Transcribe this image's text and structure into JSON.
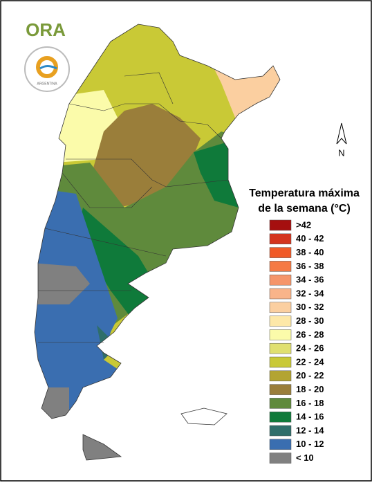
{
  "logo": {
    "text": "ORA",
    "seal_text": "ARGENTINA"
  },
  "title": [
    "Temperatura máxima",
    "de la semana (°C)"
  ],
  "north_label": "N",
  "legend": [
    {
      "label": ">42",
      "color": "#a50f0f"
    },
    {
      "label": "40 - 42",
      "color": "#d4341e"
    },
    {
      "label": "38 - 40",
      "color": "#f05a28"
    },
    {
      "label": "36 - 38",
      "color": "#f57a44"
    },
    {
      "label": "34 - 36",
      "color": "#f5956a"
    },
    {
      "label": "32 - 34",
      "color": "#f9b48a"
    },
    {
      "label": "30 - 32",
      "color": "#fbcfa0"
    },
    {
      "label": "28 - 30",
      "color": "#fde8a8"
    },
    {
      "label": "26 - 28",
      "color": "#fbfbaa"
    },
    {
      "label": "24 - 26",
      "color": "#e0e070"
    },
    {
      "label": "22 - 24",
      "color": "#c9c936"
    },
    {
      "label": "20 - 22",
      "color": "#b3a432"
    },
    {
      "label": "18 - 20",
      "color": "#9a7e3a"
    },
    {
      "label": "16 - 18",
      "color": "#5f8a3c"
    },
    {
      "label": "14 - 16",
      "color": "#0f7a3a"
    },
    {
      "label": "12 - 14",
      "color": "#2f6e6a"
    },
    {
      "label": "10 - 12",
      "color": "#3a6eb0"
    },
    {
      "label": "< 10",
      "color": "#808080"
    }
  ]
}
